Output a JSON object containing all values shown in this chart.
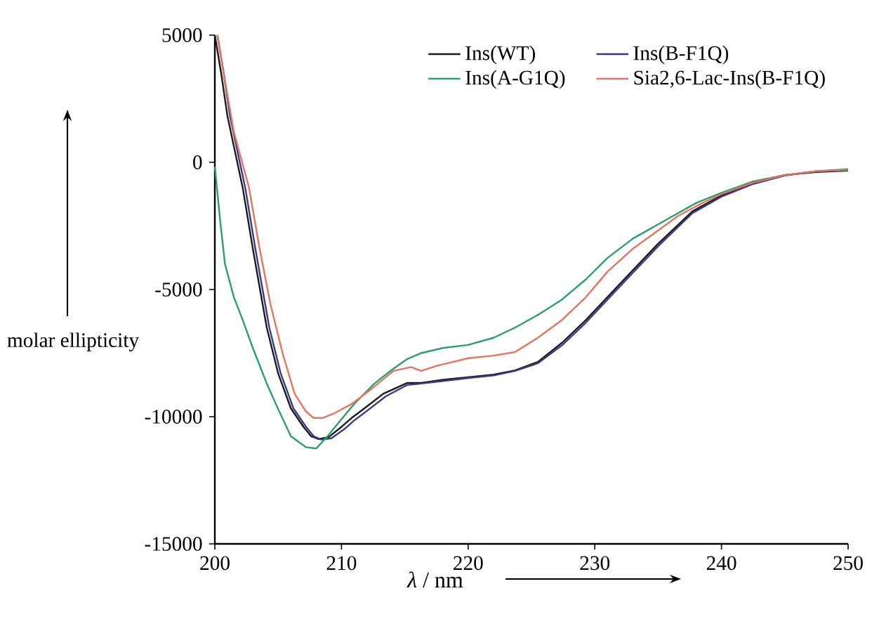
{
  "chart_data": {
    "type": "line",
    "xlabel": "*λ* / nm",
    "ylabel": "molar ellipticity",
    "xlim": [
      200,
      250
    ],
    "ylim": [
      -15000,
      5000
    ],
    "xticks": [
      200,
      210,
      220,
      230,
      240,
      250
    ],
    "yticks": [
      -15000,
      -10000,
      -5000,
      0,
      5000
    ],
    "legend": "top right",
    "grid": false,
    "marker": "none",
    "line_style": "solid",
    "series": [
      {
        "name": "Ins(WT)",
        "color": "#1a1a1a",
        "x": [
          200,
          200.5,
          201,
          202.2,
          203,
          204.1,
          205,
          206,
          207,
          207.6,
          208.2,
          209,
          210,
          210.8,
          212,
          213.3,
          215.2,
          216.3,
          218,
          220,
          222,
          223.7,
          225.5,
          227.4,
          229.3,
          231,
          232.9,
          235,
          237.7,
          240,
          242.5,
          245,
          247.5,
          250
        ],
        "values": [
          5000,
          3500,
          1800,
          -1000,
          -3400,
          -6500,
          -8300,
          -9670,
          -10400,
          -10770,
          -10880,
          -10800,
          -10400,
          -10050,
          -9600,
          -9100,
          -8670,
          -8670,
          -8550,
          -8450,
          -8350,
          -8180,
          -7850,
          -7100,
          -6200,
          -5300,
          -4300,
          -3200,
          -1930,
          -1300,
          -800,
          -500,
          -380,
          -330
        ]
      },
      {
        "name": "Ins(B-F1Q)",
        "color": "#3a3a8c",
        "x": [
          200.2,
          200.7,
          201.2,
          202.4,
          203.2,
          204.3,
          205.2,
          206.2,
          207.2,
          207.8,
          208.4,
          209.2,
          210.2,
          211,
          212.2,
          213.5,
          215.2,
          216.3,
          218,
          220,
          222,
          223.7,
          225.5,
          227.4,
          229.3,
          231,
          232.9,
          235,
          237.7,
          240,
          242.5,
          245,
          247.5,
          250
        ],
        "values": [
          5000,
          3500,
          1800,
          -1000,
          -3400,
          -6500,
          -8300,
          -9670,
          -10400,
          -10770,
          -10900,
          -10850,
          -10500,
          -10150,
          -9700,
          -9200,
          -8750,
          -8700,
          -8600,
          -8480,
          -8380,
          -8200,
          -7900,
          -7200,
          -6300,
          -5400,
          -4400,
          -3300,
          -2000,
          -1350,
          -850,
          -520,
          -350,
          -300
        ]
      },
      {
        "name": "Ins(A-G1Q)",
        "color": "#2a9e6e",
        "x": [
          200,
          200.4,
          200.8,
          201.5,
          202.2,
          203,
          204.1,
          205,
          206,
          207.2,
          208,
          208.9,
          210,
          211,
          212.6,
          214,
          215.2,
          216.3,
          218,
          220,
          222,
          223.7,
          225.5,
          227.4,
          229.3,
          231,
          233,
          235.5,
          238,
          240,
          242.5,
          245,
          247.5,
          250
        ],
        "values": [
          -170,
          -2200,
          -4000,
          -5300,
          -6200,
          -7300,
          -8700,
          -9700,
          -10770,
          -11200,
          -11250,
          -10770,
          -10100,
          -9500,
          -8700,
          -8150,
          -7730,
          -7500,
          -7300,
          -7180,
          -6900,
          -6500,
          -6000,
          -5400,
          -4600,
          -3760,
          -3000,
          -2300,
          -1600,
          -1200,
          -750,
          -500,
          -350,
          -270
        ]
      },
      {
        "name": "Sia2,6-Lac-Ins(B-F1Q)",
        "color": "#e8745f",
        "x": [
          200.2,
          200.7,
          201.5,
          202.7,
          203.5,
          204.4,
          205.4,
          206.3,
          207.2,
          207.8,
          208.5,
          209.5,
          210.8,
          212.4,
          214.1,
          215.5,
          216.3,
          217.5,
          218.8,
          220,
          222,
          223.7,
          225.5,
          227.4,
          229.3,
          231,
          233,
          236.6,
          238.5,
          240,
          242.5,
          245,
          247.5,
          250
        ],
        "values": [
          5000,
          3500,
          1200,
          -1000,
          -3300,
          -5600,
          -7600,
          -9100,
          -9800,
          -10050,
          -10050,
          -9850,
          -9500,
          -8900,
          -8200,
          -8050,
          -8200,
          -8000,
          -7850,
          -7700,
          -7600,
          -7460,
          -6900,
          -6200,
          -5300,
          -4300,
          -3400,
          -2100,
          -1600,
          -1250,
          -800,
          -500,
          -350,
          -300
        ]
      }
    ]
  }
}
